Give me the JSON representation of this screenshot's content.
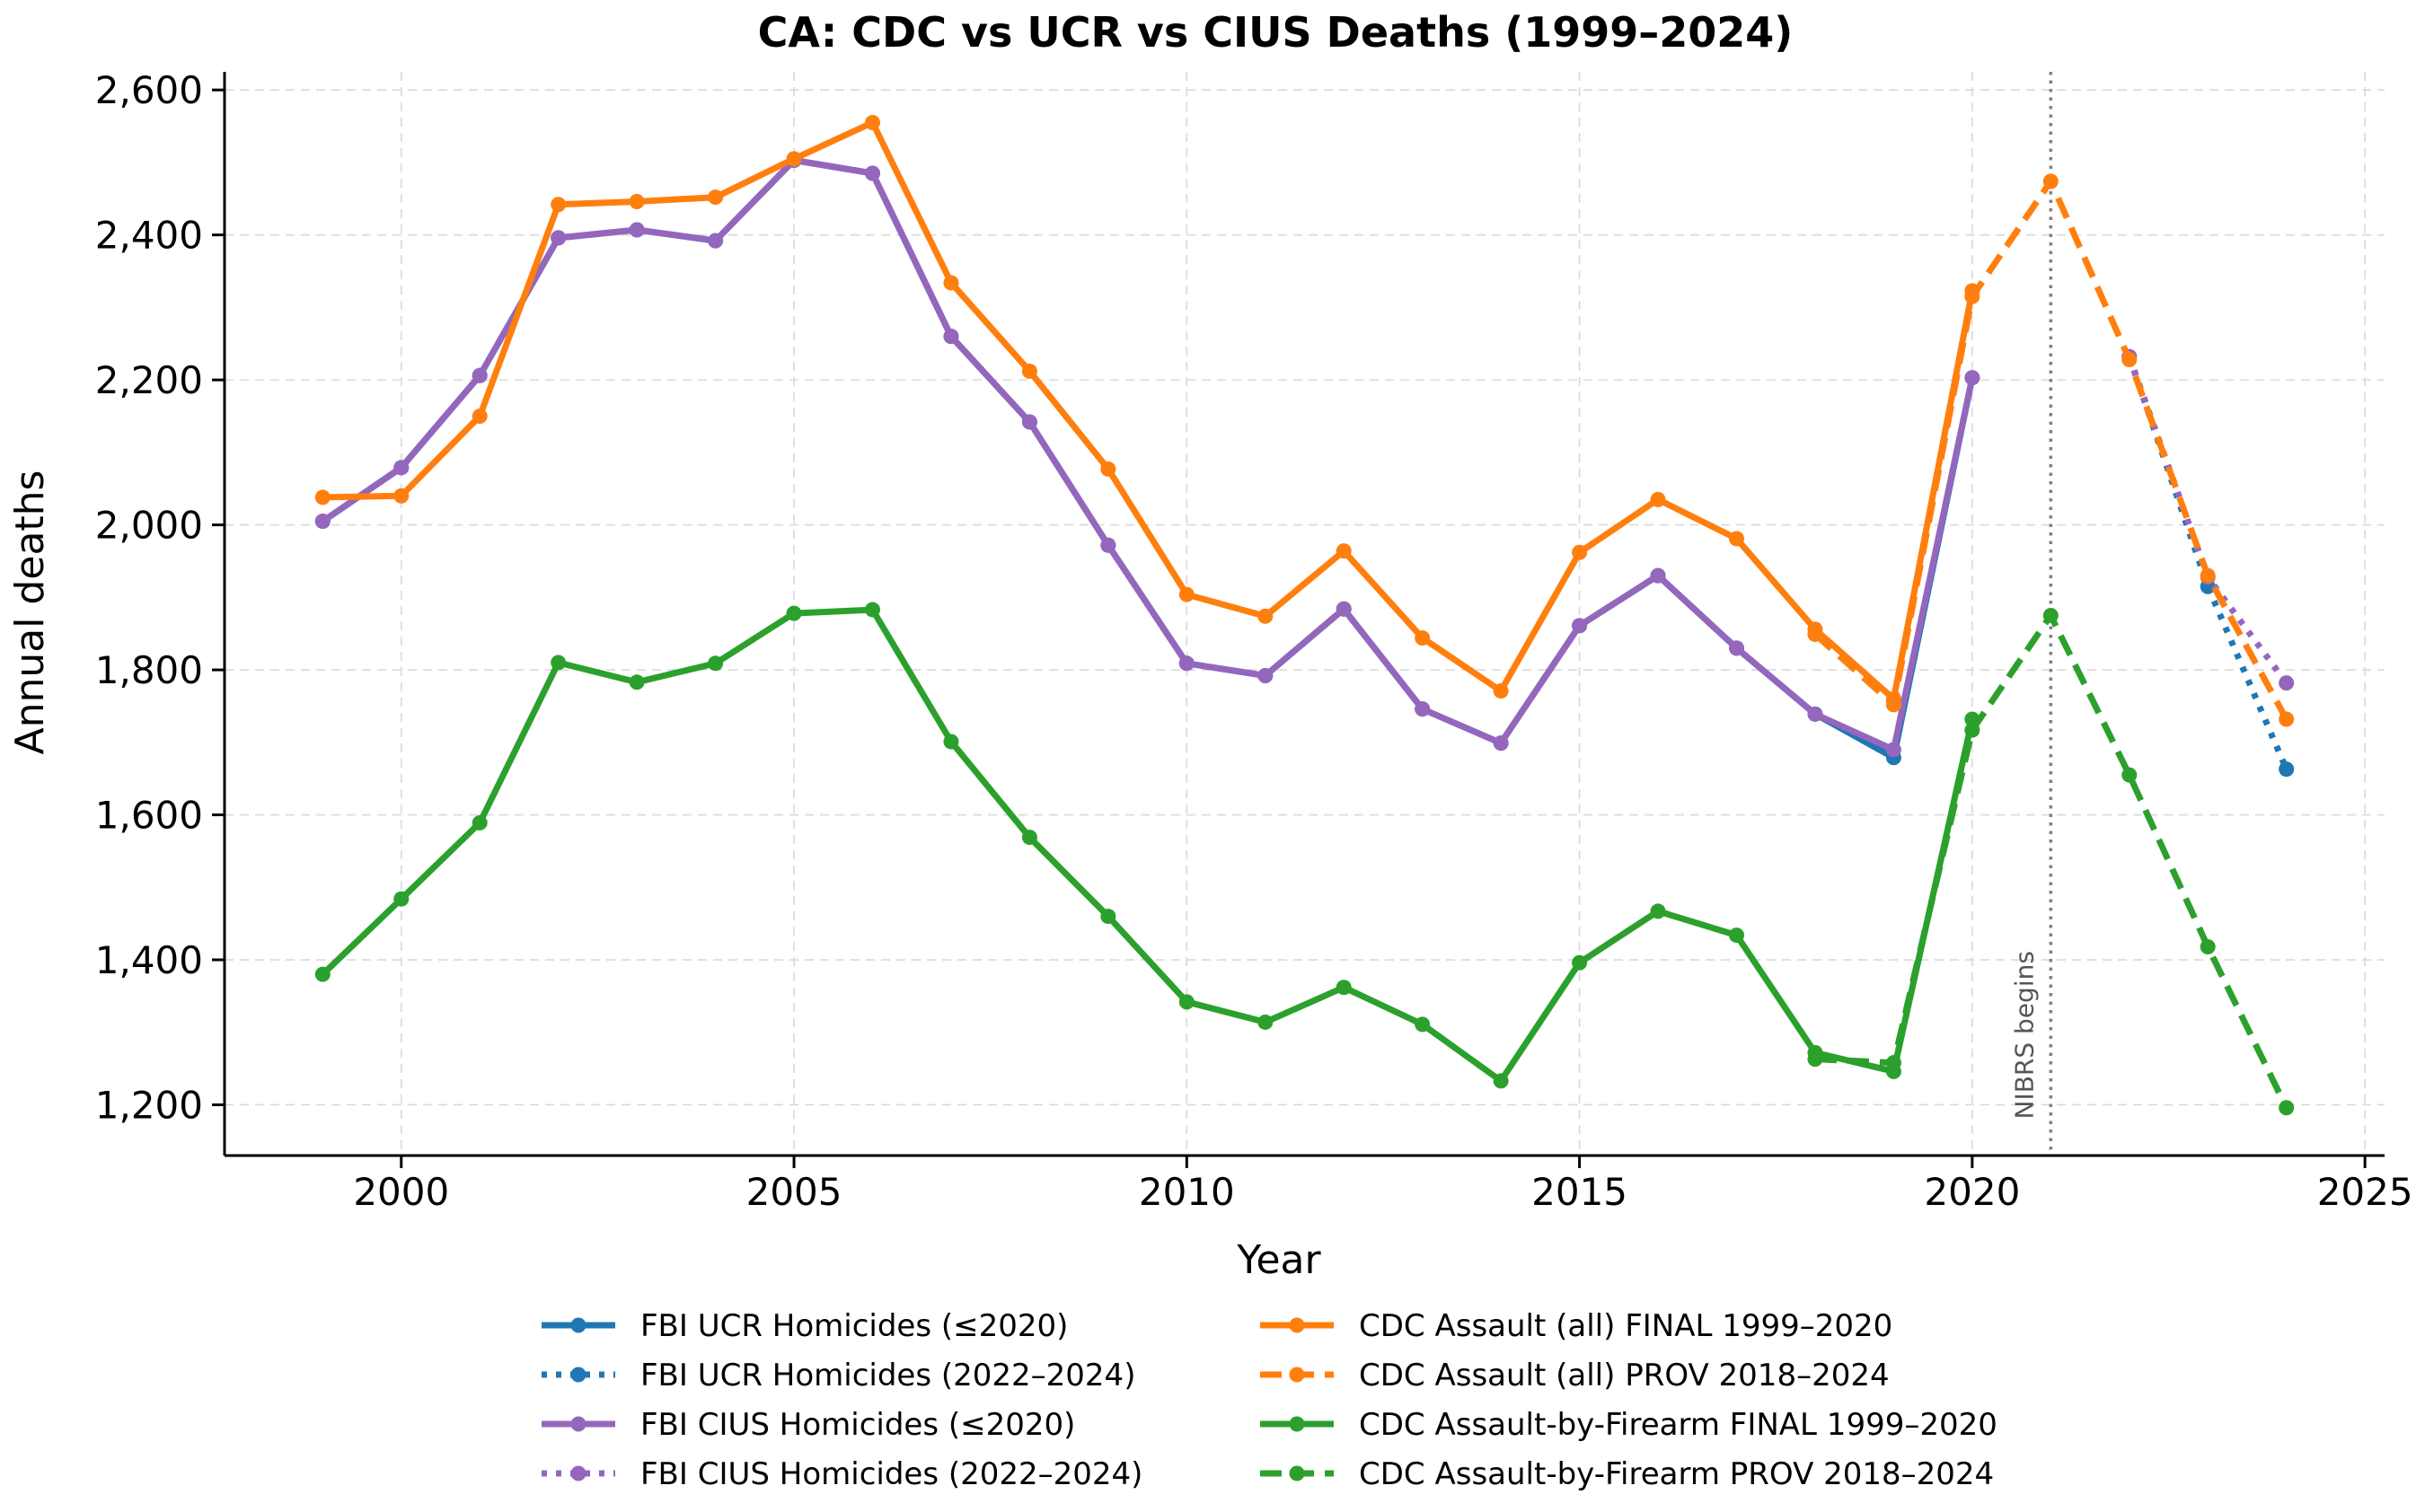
{
  "chart_data": {
    "type": "line",
    "title": "CA: CDC vs UCR vs CIUS Deaths (1999–2024)",
    "xlabel": "Year",
    "ylabel": "Annual deaths",
    "xlim": [
      1997.75,
      2025.25
    ],
    "ylim": [
      1130,
      2625
    ],
    "x_ticks": [
      2000,
      2005,
      2010,
      2015,
      2020,
      2025
    ],
    "x_tick_labels": [
      "2000",
      "2005",
      "2010",
      "2015",
      "2020",
      "2025"
    ],
    "y_ticks": [
      1200,
      1400,
      1600,
      1800,
      2000,
      2200,
      2400,
      2600
    ],
    "y_tick_labels": [
      "1,200",
      "1,400",
      "1,600",
      "1,800",
      "2,000",
      "2,200",
      "2,400",
      "2,600"
    ],
    "grid": true,
    "legend_position": "bottom",
    "annotations": [
      {
        "text": "NIBRS begins",
        "x": 2021
      }
    ],
    "series": [
      {
        "name": "FBI UCR Homicides (≤2020)",
        "color": "#1f77b4",
        "style": "solid",
        "points": [
          [
            1999,
            2005
          ],
          [
            2000,
            2079
          ],
          [
            2001,
            2206
          ],
          [
            2002,
            2396
          ],
          [
            2003,
            2407
          ],
          [
            2004,
            2392
          ],
          [
            2005,
            2503
          ],
          [
            2006,
            2485
          ],
          [
            2007,
            2260
          ],
          [
            2008,
            2142
          ],
          [
            2009,
            1972
          ],
          [
            2010,
            1809
          ],
          [
            2011,
            1792
          ],
          [
            2012,
            1884
          ],
          [
            2013,
            1746
          ],
          [
            2014,
            1699
          ],
          [
            2015,
            1861
          ],
          [
            2016,
            1930
          ],
          [
            2017,
            1830
          ],
          [
            2018,
            1739
          ],
          [
            2019,
            1679
          ],
          [
            2020,
            2203
          ]
        ]
      },
      {
        "name": "FBI UCR Homicides (2022–2024)",
        "color": "#1f77b4",
        "style": "dotted",
        "points": [
          [
            2022,
            2232
          ],
          [
            2023,
            1915
          ],
          [
            2024,
            1663
          ]
        ]
      },
      {
        "name": "FBI CIUS Homicides (≤2020)",
        "color": "#9467bd",
        "style": "solid",
        "points": [
          [
            1999,
            2005
          ],
          [
            2000,
            2079
          ],
          [
            2001,
            2206
          ],
          [
            2002,
            2396
          ],
          [
            2003,
            2407
          ],
          [
            2004,
            2392
          ],
          [
            2005,
            2503
          ],
          [
            2006,
            2485
          ],
          [
            2007,
            2260
          ],
          [
            2008,
            2142
          ],
          [
            2009,
            1972
          ],
          [
            2010,
            1809
          ],
          [
            2011,
            1792
          ],
          [
            2012,
            1884
          ],
          [
            2013,
            1746
          ],
          [
            2014,
            1699
          ],
          [
            2015,
            1861
          ],
          [
            2016,
            1930
          ],
          [
            2017,
            1830
          ],
          [
            2018,
            1739
          ],
          [
            2019,
            1690
          ],
          [
            2020,
            2203
          ]
        ]
      },
      {
        "name": "FBI CIUS Homicides (2022–2024)",
        "color": "#9467bd",
        "style": "dotted",
        "points": [
          [
            2022,
            2232
          ],
          [
            2023,
            1928
          ],
          [
            2024,
            1782
          ]
        ]
      },
      {
        "name": "CDC Assault (all) FINAL 1999–2020",
        "color": "#ff7f0e",
        "style": "solid",
        "points": [
          [
            1999,
            2038
          ],
          [
            2000,
            2040
          ],
          [
            2001,
            2150
          ],
          [
            2002,
            2442
          ],
          [
            2003,
            2446
          ],
          [
            2004,
            2452
          ],
          [
            2005,
            2505
          ],
          [
            2006,
            2555
          ],
          [
            2007,
            2334
          ],
          [
            2008,
            2212
          ],
          [
            2009,
            2077
          ],
          [
            2010,
            1904
          ],
          [
            2011,
            1874
          ],
          [
            2012,
            1964
          ],
          [
            2013,
            1844
          ],
          [
            2014,
            1771
          ],
          [
            2015,
            1962
          ],
          [
            2016,
            2035
          ],
          [
            2017,
            1981
          ],
          [
            2018,
            1856
          ],
          [
            2019,
            1760
          ],
          [
            2020,
            2323
          ]
        ]
      },
      {
        "name": "CDC Assault (all) PROV 2018–2024",
        "color": "#ff7f0e",
        "style": "dashed",
        "points": [
          [
            2018,
            1849
          ],
          [
            2019,
            1752
          ],
          [
            2020,
            2315
          ],
          [
            2021,
            2474
          ],
          [
            2022,
            2228
          ],
          [
            2023,
            1930
          ],
          [
            2024,
            1732
          ]
        ]
      },
      {
        "name": "CDC Assault-by-Firearm FINAL 1999–2020",
        "color": "#2ca02c",
        "style": "solid",
        "points": [
          [
            1999,
            1380
          ],
          [
            2000,
            1484
          ],
          [
            2001,
            1589
          ],
          [
            2002,
            1810
          ],
          [
            2003,
            1783
          ],
          [
            2004,
            1809
          ],
          [
            2005,
            1878
          ],
          [
            2006,
            1883
          ],
          [
            2007,
            1701
          ],
          [
            2008,
            1569
          ],
          [
            2009,
            1460
          ],
          [
            2010,
            1342
          ],
          [
            2011,
            1314
          ],
          [
            2012,
            1362
          ],
          [
            2013,
            1311
          ],
          [
            2014,
            1233
          ],
          [
            2015,
            1396
          ],
          [
            2016,
            1467
          ],
          [
            2017,
            1434
          ],
          [
            2018,
            1272
          ],
          [
            2019,
            1246
          ],
          [
            2020,
            1732
          ]
        ]
      },
      {
        "name": "CDC Assault-by-Firearm PROV 2018–2024",
        "color": "#2ca02c",
        "style": "dashed",
        "points": [
          [
            2018,
            1263
          ],
          [
            2019,
            1258
          ],
          [
            2020,
            1717
          ],
          [
            2021,
            1875
          ],
          [
            2022,
            1655
          ],
          [
            2023,
            1418
          ],
          [
            2024,
            1196
          ]
        ]
      }
    ]
  }
}
